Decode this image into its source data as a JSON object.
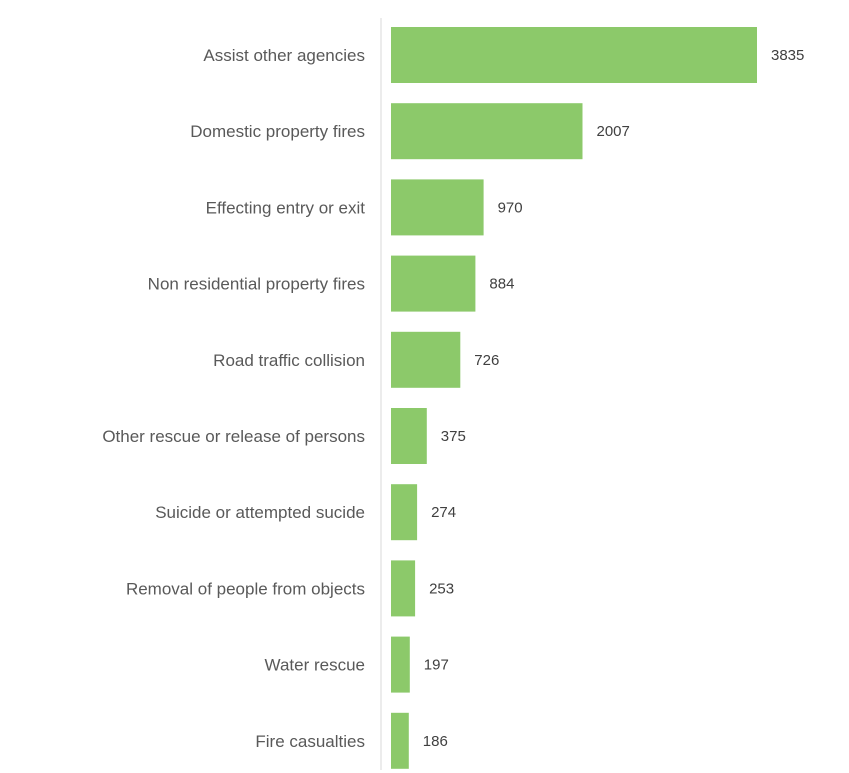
{
  "chart_data": {
    "type": "bar",
    "orientation": "horizontal",
    "categories": [
      "Assist other agencies",
      "Domestic property fires",
      "Effecting entry or exit",
      "Non residential property fires",
      "Road traffic collision",
      "Other rescue or release of persons",
      "Suicide or attempted sucide",
      "Removal of people from objects",
      "Water rescue",
      "Fire casualties"
    ],
    "values": [
      3835,
      2007,
      970,
      884,
      726,
      375,
      274,
      253,
      197,
      186
    ],
    "data_labels": [
      "3835",
      "2007",
      "970",
      "884",
      "726",
      "375",
      "274",
      "253",
      "197",
      "186"
    ],
    "bar_color": "#8cc96a",
    "title": "",
    "xlabel": "",
    "ylabel": "",
    "grid": false,
    "legend": "none"
  }
}
